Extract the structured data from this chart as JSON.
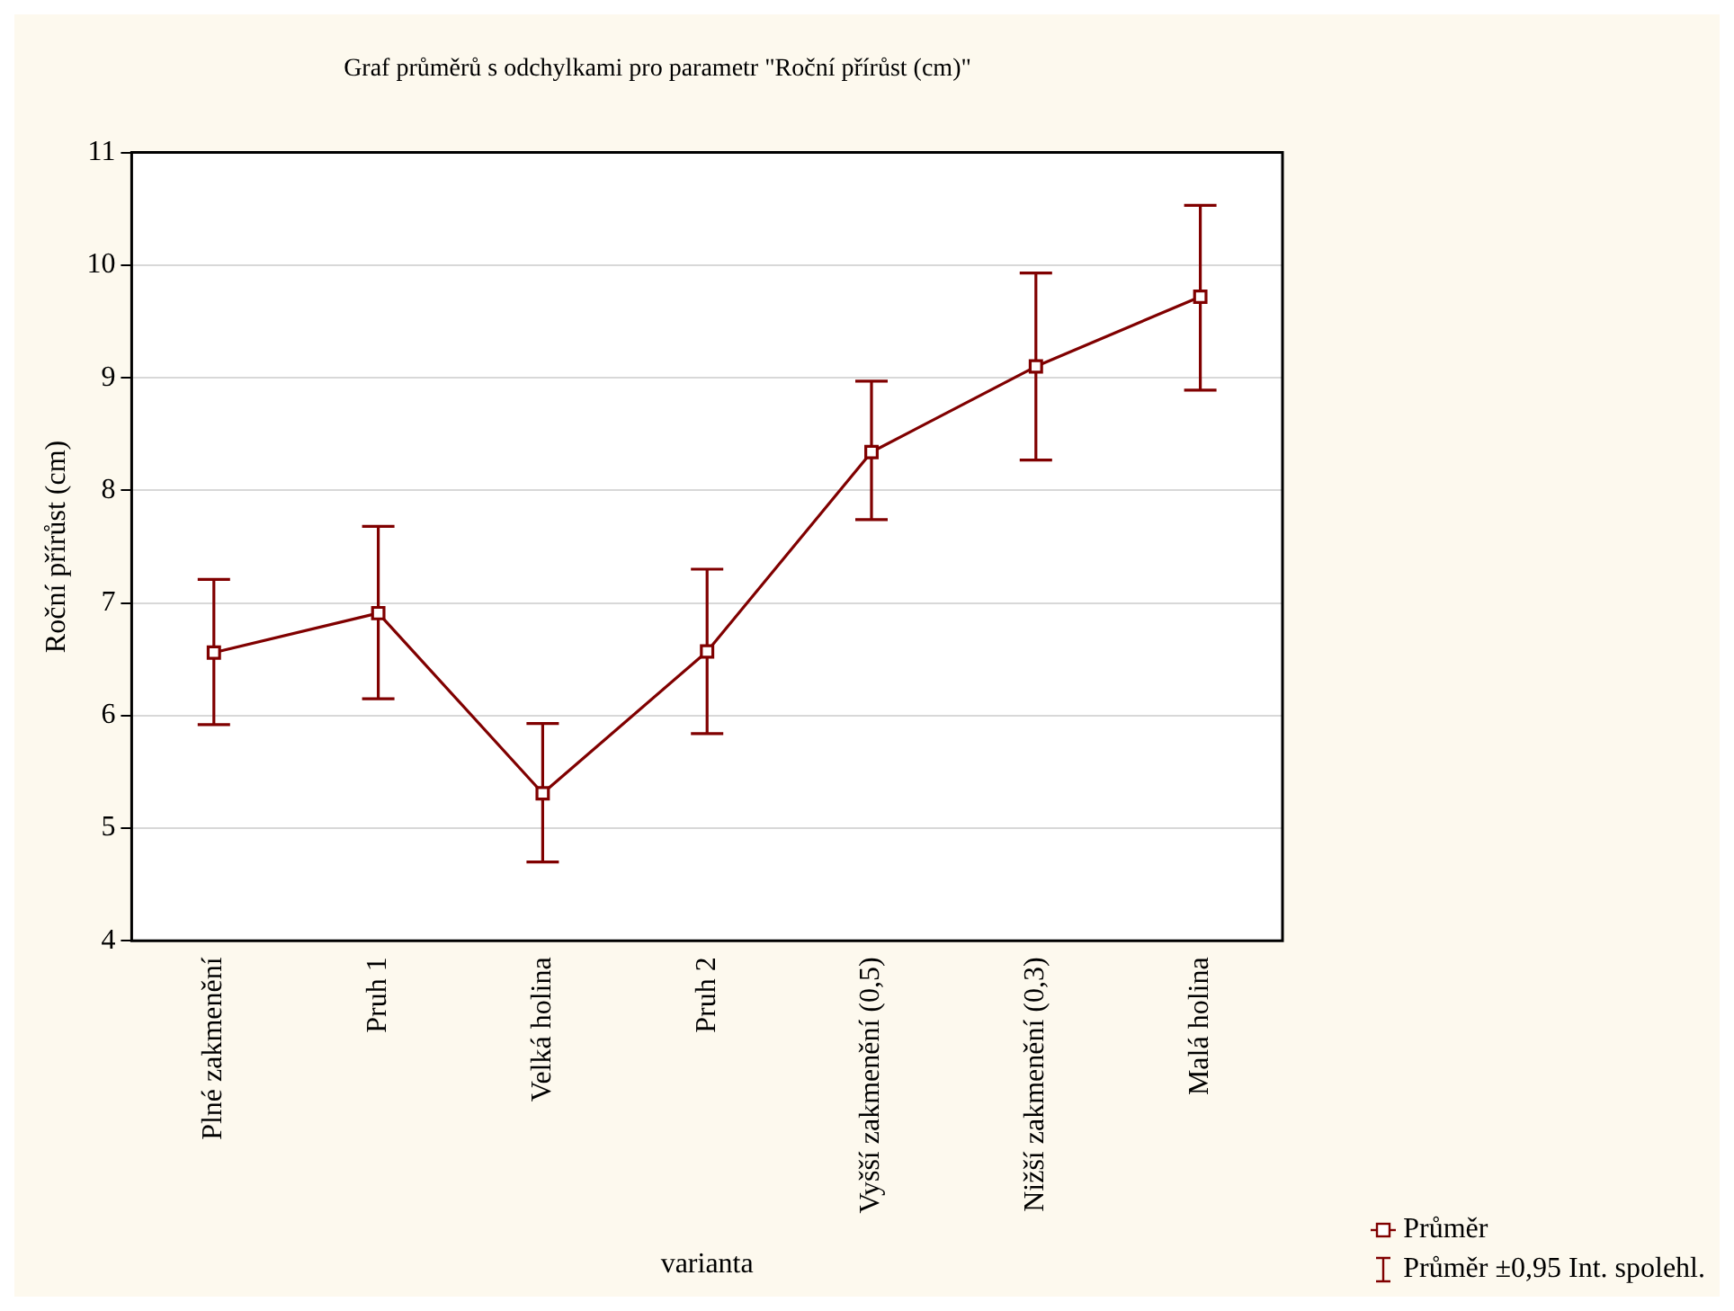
{
  "chart_data": {
    "type": "line",
    "title": "Graf průměrů s odchylkami pro parametr \"Roční přírůst (cm)\"",
    "xlabel": "varianta",
    "ylabel": "Roční přírůst (cm)",
    "categories": [
      "Plné zakmenění",
      "Pruh 1",
      "Velká holina",
      "Pruh 2",
      "Vyšší zakmenění (0,5)",
      "Nižší zakmenění (0,3)",
      "Malá holina"
    ],
    "series": [
      {
        "name": "Průměr",
        "color": "#800000",
        "values": [
          6.56,
          6.91,
          5.31,
          6.57,
          8.34,
          9.1,
          9.72
        ],
        "errors": [
          [
            5.92,
            7.21
          ],
          [
            6.15,
            7.68
          ],
          [
            4.7,
            5.93
          ],
          [
            5.84,
            7.3
          ],
          [
            7.74,
            8.97
          ],
          [
            8.27,
            9.93
          ],
          [
            8.89,
            10.53
          ]
        ]
      }
    ],
    "annotations": [
      "Průměr ±0,95 Int. spolehl."
    ],
    "ylim": [
      4,
      11
    ],
    "yticks": [
      4,
      5,
      6,
      7,
      8,
      9,
      10,
      11
    ],
    "grid": "y",
    "legend": "bottom right",
    "marker": "square",
    "line_style": "solid"
  }
}
